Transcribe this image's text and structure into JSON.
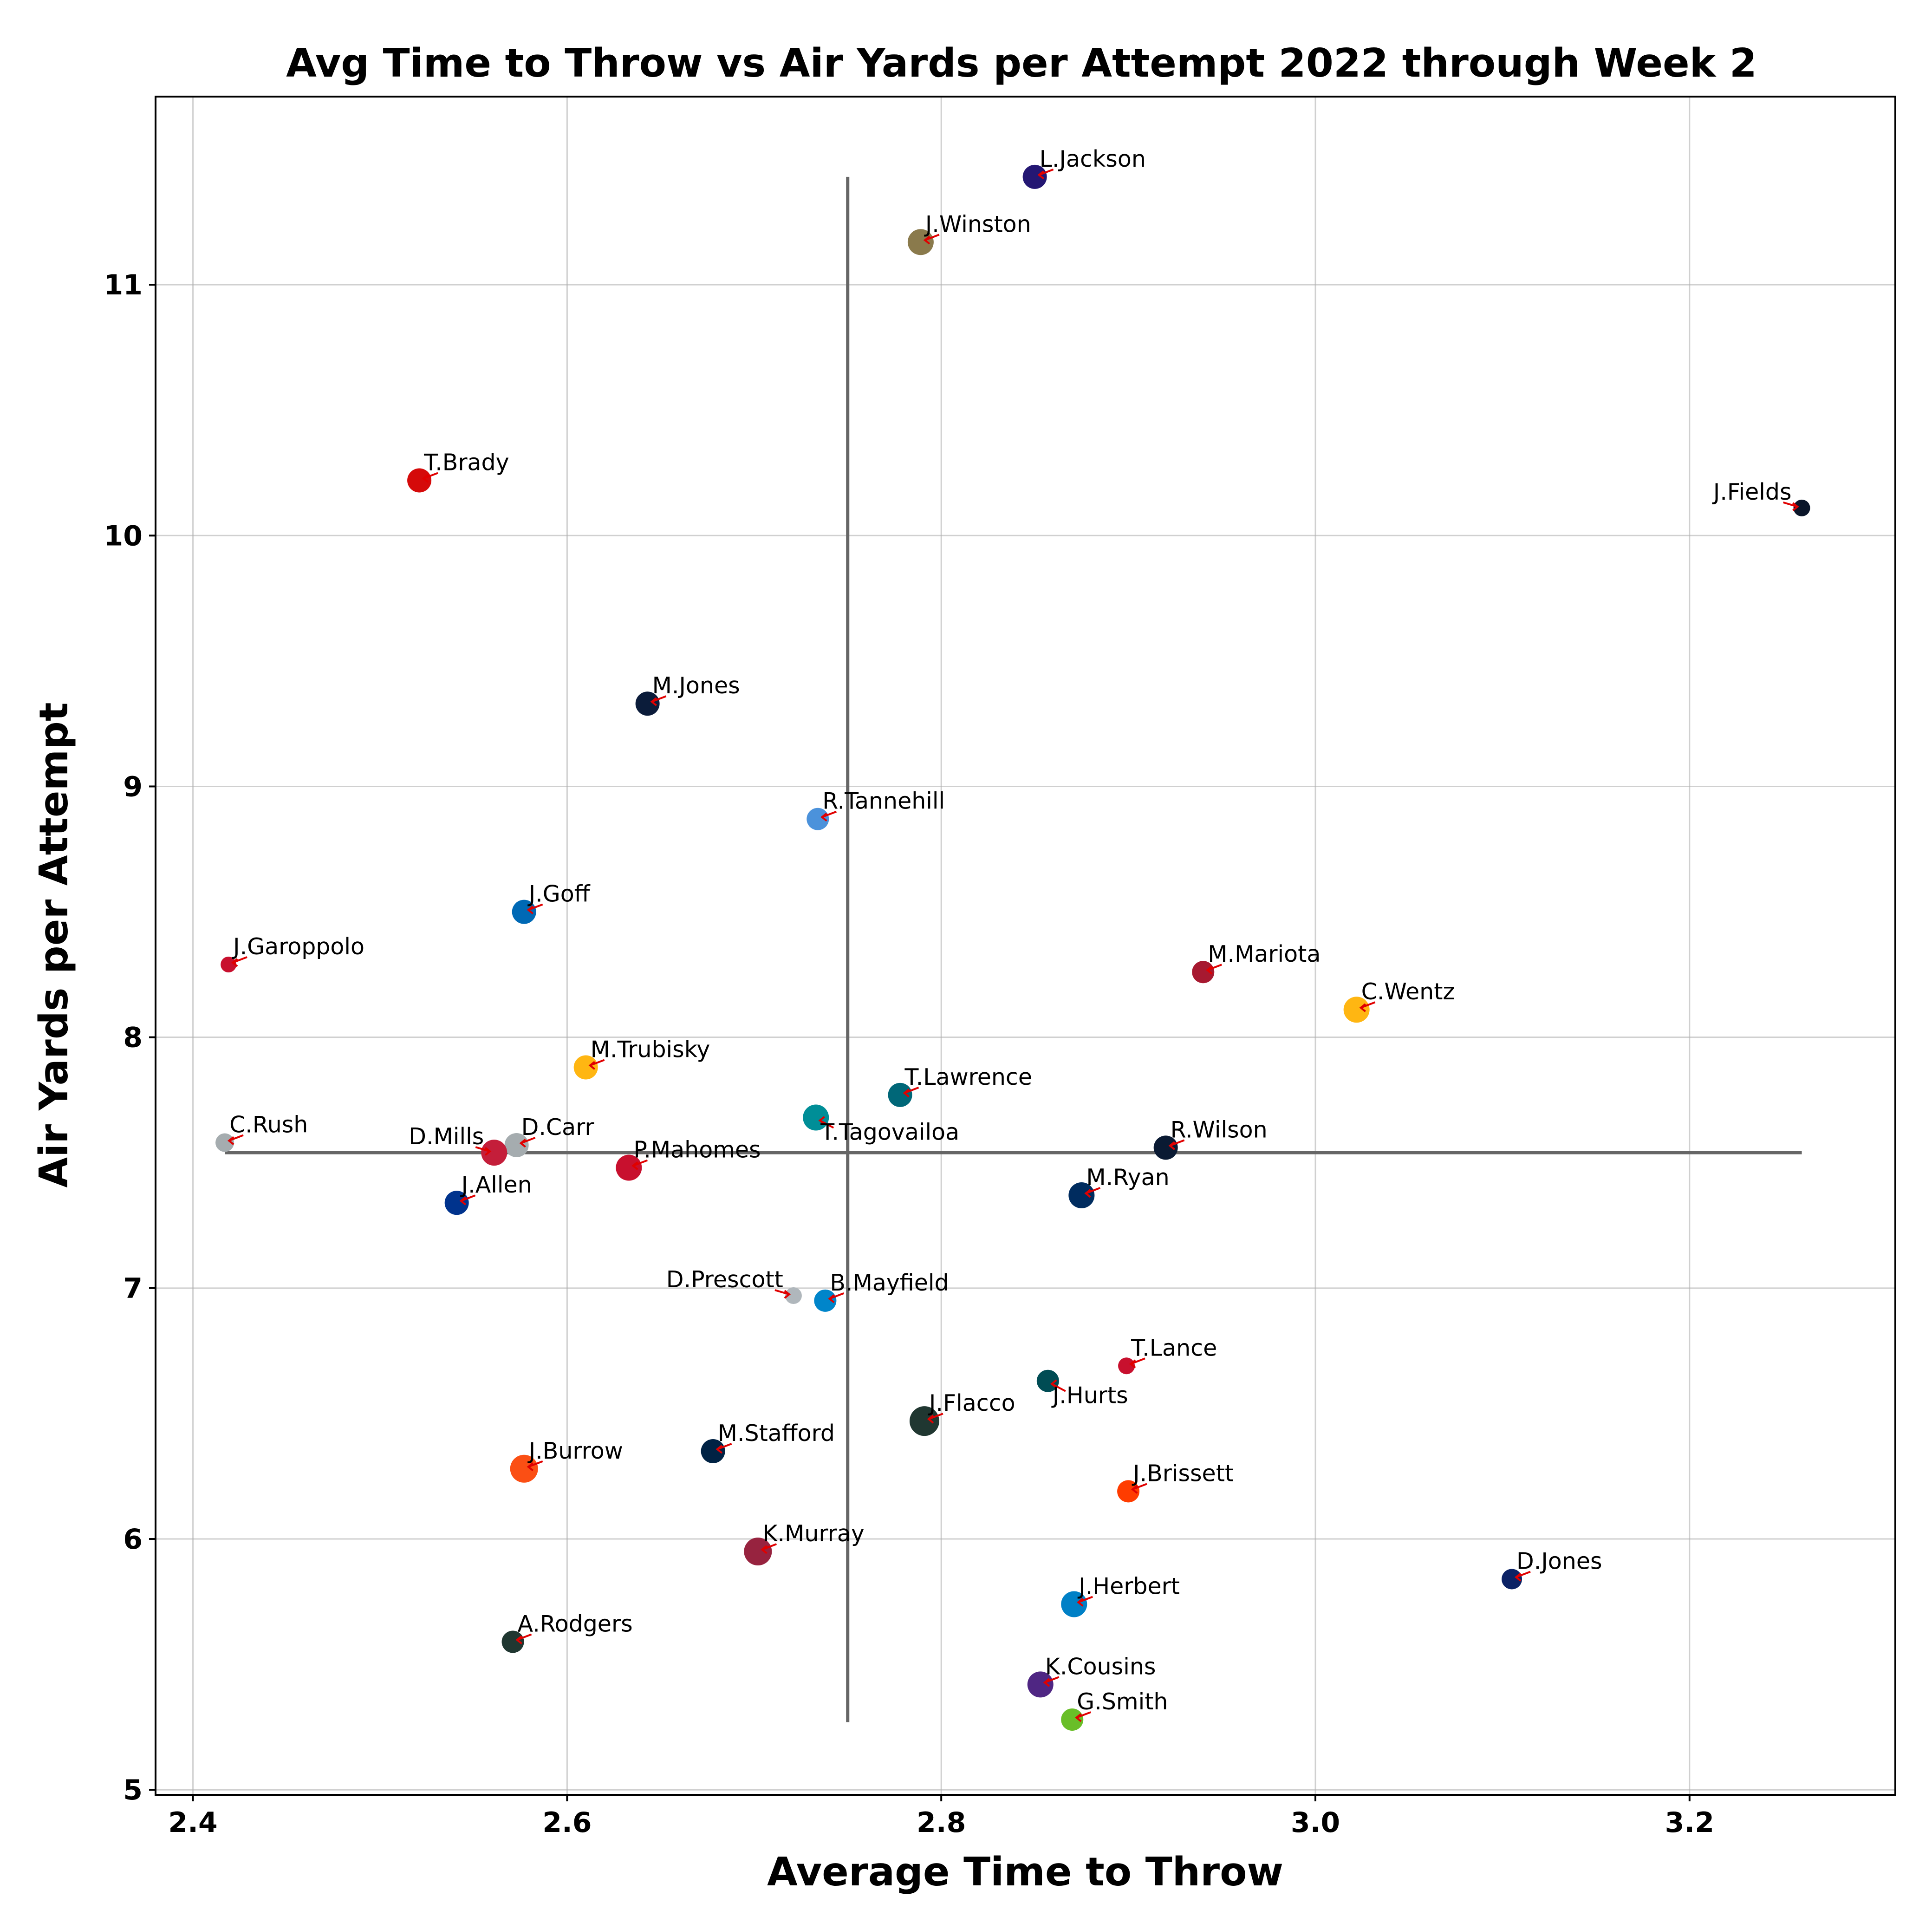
{
  "chart_data": {
    "type": "scatter",
    "title": "Avg Time to Throw vs Air Yards per Attempt 2022 through Week 2",
    "xlabel": "Average Time to Throw",
    "ylabel": "Air Yards per Attempt",
    "xlim": [
      2.38,
      3.31
    ],
    "ylim": [
      4.98,
      11.75
    ],
    "xticks": [
      2.4,
      2.6,
      2.8,
      3.0,
      3.2
    ],
    "xtick_labels": [
      "2.4",
      "2.6",
      "2.8",
      "3.0",
      "3.2"
    ],
    "yticks": [
      5,
      6,
      7,
      8,
      9,
      10,
      11
    ],
    "ytick_labels": [
      "5",
      "6",
      "7",
      "8",
      "9",
      "10",
      "11"
    ],
    "grid": true,
    "mean_lines": {
      "x": 2.75,
      "y": 7.54,
      "x_span": [
        2.417,
        3.26
      ],
      "y_span": [
        5.27,
        11.43
      ]
    },
    "points": [
      {
        "name": "L.Jackson",
        "x": 2.85,
        "y": 11.43,
        "color": "#241773",
        "size": 26,
        "label_side": "right"
      },
      {
        "name": "J.Winston",
        "x": 2.789,
        "y": 11.17,
        "color": "#8a7a4c",
        "size": 28,
        "label_side": "right"
      },
      {
        "name": "T.Brady",
        "x": 2.521,
        "y": 10.22,
        "color": "#d50a0a",
        "size": 26,
        "label_side": "right"
      },
      {
        "name": "J.Fields",
        "x": 3.26,
        "y": 10.11,
        "color": "#0b162a",
        "size": 18,
        "label_side": "left"
      },
      {
        "name": "M.Jones",
        "x": 2.643,
        "y": 9.33,
        "color": "#0b1c3a",
        "size": 26,
        "label_side": "right"
      },
      {
        "name": "R.Tannehill",
        "x": 2.734,
        "y": 8.87,
        "color": "#4b92db",
        "size": 24,
        "label_side": "right"
      },
      {
        "name": "J.Goff",
        "x": 2.577,
        "y": 8.5,
        "color": "#0069b5",
        "size": 26,
        "label_side": "right"
      },
      {
        "name": "J.Garoppolo",
        "x": 2.419,
        "y": 8.29,
        "color": "#c8102e",
        "size": 17,
        "label_side": "right"
      },
      {
        "name": "M.Mariota",
        "x": 2.94,
        "y": 8.26,
        "color": "#a71930",
        "size": 24,
        "label_side": "right"
      },
      {
        "name": "C.Wentz",
        "x": 3.022,
        "y": 8.11,
        "color": "#ffb612",
        "size": 28,
        "label_side": "right"
      },
      {
        "name": "M.Trubisky",
        "x": 2.61,
        "y": 7.88,
        "color": "#ffb612",
        "size": 26,
        "label_side": "right"
      },
      {
        "name": "T.Lawrence",
        "x": 2.778,
        "y": 7.77,
        "color": "#006778",
        "size": 26,
        "label_side": "right"
      },
      {
        "name": "T.Tagovailoa",
        "x": 2.733,
        "y": 7.68,
        "color": "#008e97",
        "size": 28,
        "label_side": "right-below"
      },
      {
        "name": "C.Rush",
        "x": 2.417,
        "y": 7.58,
        "color": "#a5acaf",
        "size": 20,
        "label_side": "right"
      },
      {
        "name": "D.Carr",
        "x": 2.573,
        "y": 7.57,
        "color": "#a5acaf",
        "size": 26,
        "label_side": "right"
      },
      {
        "name": "R.Wilson",
        "x": 2.92,
        "y": 7.56,
        "color": "#0a1a33",
        "size": 26,
        "label_side": "right"
      },
      {
        "name": "D.Mills",
        "x": 2.561,
        "y": 7.54,
        "color": "#c41e3a",
        "size": 28,
        "label_side": "left"
      },
      {
        "name": "P.Mahomes",
        "x": 2.633,
        "y": 7.48,
        "color": "#c8102e",
        "size": 28,
        "label_side": "right"
      },
      {
        "name": "M.Ryan",
        "x": 2.875,
        "y": 7.37,
        "color": "#002c5f",
        "size": 28,
        "label_side": "right"
      },
      {
        "name": "J.Allen",
        "x": 2.541,
        "y": 7.34,
        "color": "#00338d",
        "size": 26,
        "label_side": "right"
      },
      {
        "name": "D.Prescott",
        "x": 2.721,
        "y": 6.97,
        "color": "#b0b7bc",
        "size": 18,
        "label_side": "left"
      },
      {
        "name": "B.Mayfield",
        "x": 2.738,
        "y": 6.95,
        "color": "#0085ca",
        "size": 24,
        "label_side": "right"
      },
      {
        "name": "T.Lance",
        "x": 2.899,
        "y": 6.69,
        "color": "#c8102e",
        "size": 18,
        "label_side": "right"
      },
      {
        "name": "J.Hurts",
        "x": 2.857,
        "y": 6.63,
        "color": "#004c54",
        "size": 24,
        "label_side": "right-below"
      },
      {
        "name": "J.Flacco",
        "x": 2.791,
        "y": 6.47,
        "color": "#203731",
        "size": 32,
        "label_side": "right"
      },
      {
        "name": "M.Stafford",
        "x": 2.678,
        "y": 6.35,
        "color": "#002244",
        "size": 26,
        "label_side": "right"
      },
      {
        "name": "J.Burrow",
        "x": 2.577,
        "y": 6.28,
        "color": "#fb4f14",
        "size": 30,
        "label_side": "right"
      },
      {
        "name": "J.Brissett",
        "x": 2.9,
        "y": 6.19,
        "color": "#ff3c00",
        "size": 24,
        "label_side": "right"
      },
      {
        "name": "K.Murray",
        "x": 2.702,
        "y": 5.95,
        "color": "#97233f",
        "size": 30,
        "label_side": "right"
      },
      {
        "name": "D.Jones",
        "x": 3.105,
        "y": 5.84,
        "color": "#0b2265",
        "size": 22,
        "label_side": "right"
      },
      {
        "name": "J.Herbert",
        "x": 2.871,
        "y": 5.74,
        "color": "#0080c6",
        "size": 28,
        "label_side": "right"
      },
      {
        "name": "A.Rodgers",
        "x": 2.571,
        "y": 5.59,
        "color": "#203731",
        "size": 24,
        "label_side": "right"
      },
      {
        "name": "K.Cousins",
        "x": 2.853,
        "y": 5.42,
        "color": "#4f2683",
        "size": 28,
        "label_side": "right"
      },
      {
        "name": "G.Smith",
        "x": 2.87,
        "y": 5.28,
        "color": "#69be28",
        "size": 24,
        "label_side": "right"
      }
    ]
  }
}
